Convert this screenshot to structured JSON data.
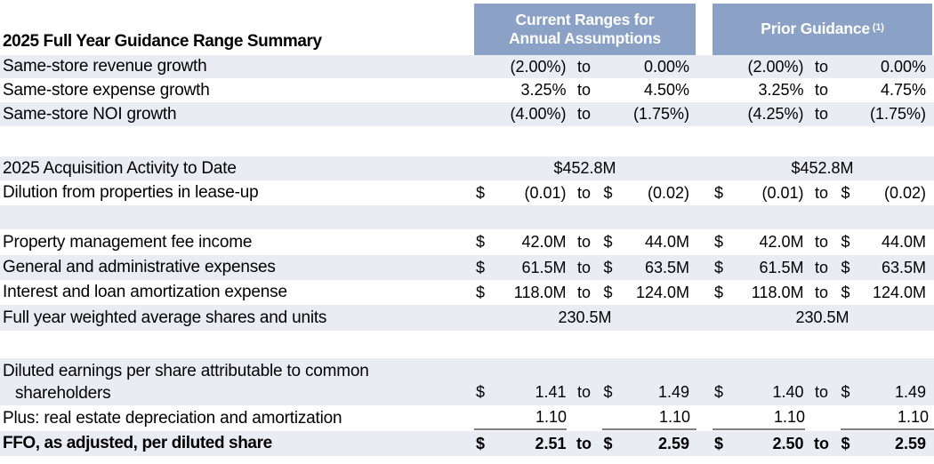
{
  "colors": {
    "header_bg": "#8BA1C5",
    "row_shade": "#E9EDF3",
    "sum_rule": "#7F7F7F"
  },
  "header": {
    "title": "2025 Full Year Guidance Range Summary",
    "current_label": "Current Ranges for\nAnnual Assumptions",
    "prior_label": "Prior Guidance",
    "prior_footnote": "(1)"
  },
  "rows": [
    {
      "label": "Same-store revenue growth",
      "current": {
        "low": "(2.00%)",
        "to": "to",
        "high": "0.00%"
      },
      "prior": {
        "low": "(2.00%)",
        "to": "to",
        "high": "0.00%"
      }
    },
    {
      "label": "Same-store expense growth",
      "current": {
        "low": "3.25%",
        "to": "to",
        "high": "4.50%"
      },
      "prior": {
        "low": "3.25%",
        "to": "to",
        "high": "4.75%"
      }
    },
    {
      "label": "Same-store NOI growth",
      "current": {
        "low": "(4.00%)",
        "to": "to",
        "high": "(1.75%)"
      },
      "prior": {
        "low": "(4.25%)",
        "to": "to",
        "high": "(1.75%)"
      }
    },
    {
      "label": "2025 Acquisition Activity to Date",
      "current": {
        "value": "$452.8M"
      },
      "prior": {
        "value": "$452.8M"
      }
    },
    {
      "label": "Dilution from properties in lease-up",
      "current": {
        "d1": "$",
        "low": "(0.01)",
        "to": "to",
        "d2": "$",
        "high": "(0.02)"
      },
      "prior": {
        "d1": "$",
        "low": "(0.01)",
        "to": "to",
        "d2": "$",
        "high": "(0.02)"
      }
    },
    {
      "label": "Property management fee income",
      "current": {
        "d1": "$",
        "low": "42.0M",
        "to": "to",
        "d2": "$",
        "high": "44.0M"
      },
      "prior": {
        "d1": "$",
        "low": "42.0M",
        "to": "to",
        "d2": "$",
        "high": "44.0M"
      }
    },
    {
      "label": "General and administrative expenses",
      "current": {
        "d1": "$",
        "low": "61.5M",
        "to": "to",
        "d2": "$",
        "high": "63.5M"
      },
      "prior": {
        "d1": "$",
        "low": "61.5M",
        "to": "to",
        "d2": "$",
        "high": "63.5M"
      }
    },
    {
      "label": "Interest and loan amortization expense",
      "current": {
        "d1": "$",
        "low": "118.0M",
        "to": "to",
        "d2": "$",
        "high": "124.0M"
      },
      "prior": {
        "d1": "$",
        "low": "118.0M",
        "to": "to",
        "d2": "$",
        "high": "124.0M"
      }
    },
    {
      "label": "Full year weighted average shares and units",
      "current": {
        "value": "230.5M"
      },
      "prior": {
        "value": "230.5M"
      }
    },
    {
      "label_line1": "Diluted earnings per share attributable to common",
      "label_line2": "shareholders",
      "current": {
        "d1": "$",
        "low": "1.41",
        "to": "to",
        "d2": "$",
        "high": "1.49"
      },
      "prior": {
        "d1": "$",
        "low": "1.40",
        "to": "to",
        "d2": "$",
        "high": "1.49"
      }
    },
    {
      "label": "Plus: real estate depreciation and amortization",
      "current": {
        "low": "1.10",
        "high": "1.10"
      },
      "prior": {
        "low": "1.10",
        "high": "1.10"
      }
    },
    {
      "label": "FFO, as adjusted, per diluted share",
      "current": {
        "d1": "$",
        "low": "2.51",
        "to": "to",
        "d2": "$",
        "high": "2.59"
      },
      "prior": {
        "d1": "$",
        "low": "2.50",
        "to": "to",
        "d2": "$",
        "high": "2.59"
      }
    }
  ]
}
